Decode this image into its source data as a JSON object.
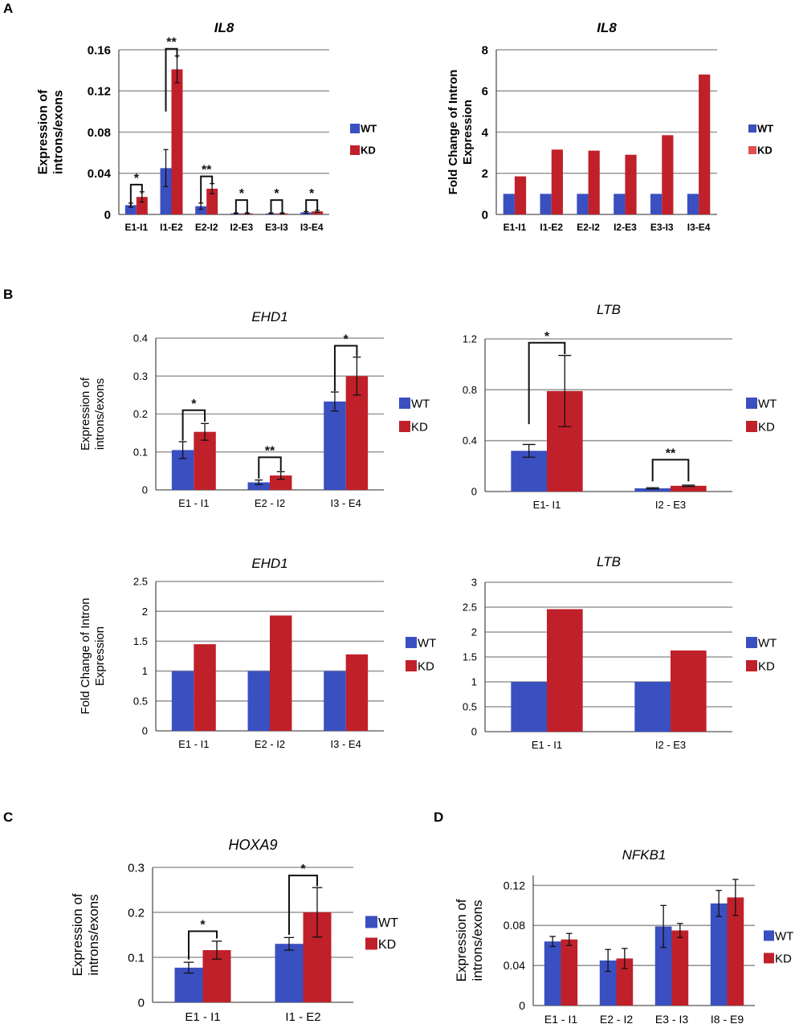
{
  "figure": {
    "panel_labels": [
      "A",
      "B",
      "C",
      "D"
    ],
    "legend": {
      "wt": "WT",
      "kd": "KD"
    },
    "colors": {
      "wt": "#3a4fc0",
      "kd": "#c0202a",
      "kd_light": "#e05050",
      "grid": "#999999",
      "axis": "#555555",
      "text": "#000000"
    }
  },
  "chart_data": [
    {
      "id": "A1",
      "type": "bar",
      "title": "IL8",
      "title_italic": true,
      "ylabel": [
        "Expression of",
        "introns/exons"
      ],
      "ylim": [
        0,
        0.16
      ],
      "yticks": [
        0,
        0.04,
        0.08,
        0.12,
        0.16
      ],
      "ytick_labels": [
        "0",
        "0.04",
        "0.08",
        "0.12",
        "0.16"
      ],
      "categories": [
        "E1-I1",
        "I1-E2",
        "E2-I2",
        "I2-E3",
        "E3-I3",
        "I3-E4"
      ],
      "series": [
        {
          "name": "WT",
          "values": [
            0.009,
            0.045,
            0.008,
            0.001,
            0.001,
            0.002
          ],
          "errors": [
            0.002,
            0.018,
            0.003,
            0.0005,
            0.0005,
            0.0008
          ]
        },
        {
          "name": "KD",
          "values": [
            0.017,
            0.141,
            0.025,
            0.001,
            0.001,
            0.003
          ],
          "errors": [
            0.005,
            0.013,
            0.005,
            0.0005,
            0.0005,
            0.001
          ]
        }
      ],
      "significance": [
        {
          "category": 0,
          "label": "*",
          "wt_y": 0.008,
          "kd_y": 0.02,
          "top_y": 0.029
        },
        {
          "category": 1,
          "label": "**",
          "wt_y": 0.1,
          "kd_y": 0.152,
          "top_y": 0.161
        },
        {
          "category": 2,
          "label": "**",
          "wt_y": 0.011,
          "kd_y": 0.029,
          "top_y": 0.037
        },
        {
          "category": 3,
          "label": "*",
          "wt_y": 0.002,
          "kd_y": 0.002,
          "top_y": 0.014
        },
        {
          "category": 4,
          "label": "*",
          "wt_y": 0.002,
          "kd_y": 0.002,
          "top_y": 0.014
        },
        {
          "category": 5,
          "label": "*",
          "wt_y": 0.002,
          "kd_y": 0.004,
          "top_y": 0.014
        }
      ]
    },
    {
      "id": "A2",
      "type": "bar",
      "title": "IL8",
      "title_italic": true,
      "ylabel": [
        "Fold Change of Intron",
        "Expression"
      ],
      "ylim": [
        0,
        8
      ],
      "yticks": [
        0,
        2,
        4,
        6,
        8
      ],
      "ytick_labels": [
        "0",
        "2",
        "4",
        "6",
        "8"
      ],
      "categories": [
        "E1-I1",
        "I1-E2",
        "E2-I2",
        "I2-E3",
        "E3-I3",
        "I3-E4"
      ],
      "series": [
        {
          "name": "WT",
          "values": [
            1,
            1,
            1,
            1,
            1,
            1
          ]
        },
        {
          "name": "KD",
          "values": [
            1.85,
            3.15,
            3.1,
            2.9,
            3.85,
            6.8
          ]
        }
      ]
    },
    {
      "id": "B1",
      "type": "bar",
      "title": "EHD1",
      "title_italic": true,
      "ylabel": [
        "Expression of",
        "introns/exons"
      ],
      "ylim": [
        0,
        0.4
      ],
      "yticks": [
        0,
        0.1,
        0.2,
        0.3,
        0.4
      ],
      "ytick_labels": [
        "0",
        "0.1",
        "0.2",
        "0.3",
        "0.4"
      ],
      "categories": [
        "E1 - I1",
        "E2 - I2",
        "I3 - E4"
      ],
      "series": [
        {
          "name": "WT",
          "values": [
            0.105,
            0.02,
            0.233
          ],
          "errors": [
            0.022,
            0.006,
            0.025
          ]
        },
        {
          "name": "KD",
          "values": [
            0.153,
            0.038,
            0.3
          ],
          "errors": [
            0.022,
            0.01,
            0.05
          ]
        }
      ],
      "significance": [
        {
          "category": 0,
          "label": "*",
          "wt_y": 0.13,
          "kd_y": 0.18,
          "top_y": 0.21
        },
        {
          "category": 1,
          "label": "**",
          "wt_y": 0.03,
          "kd_y": 0.05,
          "top_y": 0.086
        },
        {
          "category": 2,
          "label": "*",
          "wt_y": 0.26,
          "kd_y": 0.352,
          "top_y": 0.38
        }
      ]
    },
    {
      "id": "B2",
      "type": "bar",
      "title": "LTB",
      "title_italic": true,
      "ylabel": [],
      "ylim": [
        0,
        1.2
      ],
      "yticks": [
        0,
        0.4,
        0.8,
        1.2
      ],
      "ytick_labels": [
        "0",
        "0.4",
        "0.8",
        "1.2"
      ],
      "categories": [
        "E1- I1",
        "I2 - E3"
      ],
      "series": [
        {
          "name": "WT",
          "values": [
            0.32,
            0.025
          ],
          "errors": [
            0.05,
            0.005
          ]
        },
        {
          "name": "KD",
          "values": [
            0.79,
            0.045
          ],
          "errors": [
            0.28,
            0.005
          ]
        }
      ],
      "significance": [
        {
          "category": 0,
          "label": "*",
          "wt_y": 0.53,
          "kd_y": 1.08,
          "top_y": 1.17
        },
        {
          "category": 1,
          "label": "**",
          "wt_y": 0.08,
          "kd_y": 0.08,
          "top_y": 0.25
        }
      ]
    },
    {
      "id": "B3",
      "type": "bar",
      "title": "EHD1",
      "title_italic": true,
      "ylabel": [
        "Fold Change of Intron",
        "Expression"
      ],
      "ylim": [
        0,
        2.5
      ],
      "yticks": [
        0,
        0.5,
        1,
        1.5,
        2,
        2.5
      ],
      "ytick_labels": [
        "0",
        "0.5",
        "1",
        "1.5",
        "2",
        "2.5"
      ],
      "categories": [
        "E1 - I1",
        "E2 - I2",
        "I3 - E4"
      ],
      "series": [
        {
          "name": "WT",
          "values": [
            1,
            1,
            1
          ]
        },
        {
          "name": "KD",
          "values": [
            1.45,
            1.93,
            1.28
          ]
        }
      ]
    },
    {
      "id": "B4",
      "type": "bar",
      "title": "LTB",
      "title_italic": true,
      "ylabel": [],
      "ylim": [
        0,
        3
      ],
      "yticks": [
        0,
        0.5,
        1,
        1.5,
        2,
        2.5,
        3
      ],
      "ytick_labels": [
        "0",
        "0.5",
        "1",
        "1.5",
        "2",
        "2.5",
        "3"
      ],
      "categories": [
        "E1 - I1",
        "I2 - E3"
      ],
      "series": [
        {
          "name": "WT",
          "values": [
            1,
            1
          ]
        },
        {
          "name": "KD",
          "values": [
            2.46,
            1.63
          ]
        }
      ]
    },
    {
      "id": "C",
      "type": "bar",
      "title": "HOXA9",
      "title_italic": true,
      "ylabel": [
        "Expression of",
        "introns/exons"
      ],
      "ylim": [
        0,
        0.3
      ],
      "yticks": [
        0,
        0.1,
        0.2,
        0.3
      ],
      "ytick_labels": [
        "0",
        "0.1",
        "0.2",
        "0.3"
      ],
      "categories": [
        "E1 - I1",
        "I1 - E2"
      ],
      "series": [
        {
          "name": "WT",
          "values": [
            0.077,
            0.13
          ],
          "errors": [
            0.012,
            0.014
          ]
        },
        {
          "name": "KD",
          "values": [
            0.116,
            0.2
          ],
          "errors": [
            0.02,
            0.055
          ]
        }
      ],
      "significance": [
        {
          "category": 0,
          "label": "*",
          "wt_y": 0.095,
          "kd_y": 0.142,
          "top_y": 0.158
        },
        {
          "category": 1,
          "label": "*",
          "wt_y": 0.15,
          "kd_y": 0.258,
          "top_y": 0.282
        }
      ]
    },
    {
      "id": "D",
      "type": "bar",
      "title": "NFKB1",
      "title_italic": true,
      "ylabel": [
        "Expression of",
        "introns/exons"
      ],
      "ylim": [
        0,
        0.13
      ],
      "yticks": [
        0,
        0.04,
        0.08,
        0.12
      ],
      "ytick_labels": [
        "0",
        "0.04",
        "0.08",
        "0.12"
      ],
      "categories": [
        "E1 - I1",
        "E2 - I2",
        "E3 - I3",
        "I8 - E9"
      ],
      "series": [
        {
          "name": "WT",
          "values": [
            0.064,
            0.045,
            0.079,
            0.102
          ],
          "errors": [
            0.005,
            0.011,
            0.021,
            0.013
          ]
        },
        {
          "name": "KD",
          "values": [
            0.066,
            0.047,
            0.075,
            0.108
          ],
          "errors": [
            0.006,
            0.01,
            0.007,
            0.018
          ]
        }
      ]
    }
  ]
}
